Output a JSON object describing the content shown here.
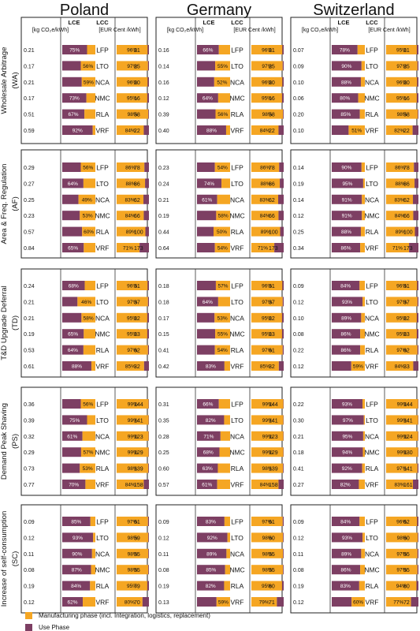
{
  "chart_data": {
    "type": "bar",
    "colors": {
      "manufacturing": "#F5A623",
      "use": "#7D3F63",
      "border": "#222222"
    },
    "countries": [
      "Poland",
      "Germany",
      "Switzerland"
    ],
    "lce_header": "LCE",
    "lce_unit": "[kg CO₂e/kWh]",
    "lcc_header": "LCC",
    "lcc_unit": "[EUR Cent /kWh]",
    "technologies": [
      "LFP",
      "LTO",
      "NCA",
      "NMC",
      "RLA",
      "VRF"
    ],
    "applications": [
      {
        "label": "Wholesale Arbitrage",
        "abbr": "(WA)"
      },
      {
        "label": "Area & Freq. Regulation",
        "abbr": "(AF)"
      },
      {
        "label": "T&D Upgrade Deferral",
        "abbr": "(TD)"
      },
      {
        "label": "Demand Peak Shaving",
        "abbr": "(PS)"
      },
      {
        "label": "Increase of self-consumption",
        "abbr": "(SC)"
      }
    ],
    "lce_values": [
      [
        [
          "0.21",
          "0.17",
          "0.21",
          "0.17",
          "0.51",
          "0.59"
        ],
        [
          "0.16",
          "0.14",
          "0.16",
          "0.12",
          "0.39",
          "0.40"
        ],
        [
          "0.07",
          "0.09",
          "0.10",
          "0.06",
          "0.20",
          "0.10"
        ]
      ],
      [
        [
          "0.29",
          "0.27",
          "0.25",
          "0.23",
          "0.57",
          "0.84"
        ],
        [
          "0.23",
          "0.24",
          "0.21",
          "0.19",
          "0.44",
          "0.64"
        ],
        [
          "0.14",
          "0.19",
          "0.14",
          "0.12",
          "0.25",
          "0.34"
        ]
      ],
      [
        [
          "0.24",
          "0.21",
          "0.21",
          "0.19",
          "0.53",
          "0.61"
        ],
        [
          "0.18",
          "0.18",
          "0.17",
          "0.15",
          "0.41",
          "0.42"
        ],
        [
          "0.09",
          "0.12",
          "0.10",
          "0.08",
          "0.22",
          "0.12"
        ]
      ],
      [
        [
          "0.36",
          "0.39",
          "0.32",
          "0.29",
          "0.73",
          "0.77"
        ],
        [
          "0.31",
          "0.35",
          "0.28",
          "0.25",
          "0.60",
          "0.57"
        ],
        [
          "0.22",
          "0.30",
          "0.21",
          "0.18",
          "0.41",
          "0.27"
        ]
      ],
      [
        [
          "0.09",
          "0.12",
          "0.11",
          "0.08",
          "0.19",
          "0.12"
        ],
        [
          "0.09",
          "0.12",
          "0.11",
          "0.08",
          "0.19",
          "0.13"
        ],
        [
          "0.09",
          "0.12",
          "0.11",
          "0.08",
          "0.19",
          "0.12"
        ]
      ]
    ],
    "lce_use_share": [
      [
        [
          75,
          56,
          59,
          73,
          67,
          92
        ],
        [
          66,
          55,
          52,
          64,
          56,
          88
        ],
        [
          78,
          90,
          88,
          80,
          85,
          51
        ]
      ],
      [
        [
          56,
          64,
          49,
          53,
          60,
          65
        ],
        [
          54,
          74,
          61,
          58,
          50,
          54
        ],
        [
          90,
          95,
          91,
          91,
          88,
          86
        ]
      ],
      [
        [
          68,
          46,
          58,
          65,
          64,
          88
        ],
        [
          57,
          64,
          53,
          55,
          54,
          83
        ],
        [
          84,
          93,
          89,
          86,
          86,
          59
        ]
      ],
      [
        [
          56,
          75,
          61,
          57,
          53,
          70
        ],
        [
          66,
          82,
          71,
          68,
          63,
          61
        ],
        [
          93,
          97,
          95,
          94,
          92,
          82
        ]
      ],
      [
        [
          85,
          93,
          90,
          87,
          84,
          62
        ],
        [
          83,
          92,
          89,
          85,
          82,
          59
        ],
        [
          84,
          93,
          89,
          86,
          83,
          60
        ]
      ]
    ],
    "lcc_values": [
      [
        [
          "21",
          "25",
          "20",
          "16",
          "58",
          "22"
        ],
        [
          "21",
          "25",
          "20",
          "16",
          "58",
          "22"
        ],
        [
          "21",
          "25",
          "20",
          "16",
          "58",
          "22"
        ]
      ],
      [
        [
          "78",
          "86",
          "62",
          "66",
          "100",
          "173"
        ],
        [
          "78",
          "86",
          "62",
          "66",
          "100",
          "173"
        ],
        [
          "78",
          "86",
          "62",
          "66",
          "100",
          "173"
        ]
      ],
      [
        [
          "31",
          "37",
          "22",
          "23",
          "62",
          "32"
        ],
        [
          "31",
          "37",
          "22",
          "23",
          "61",
          "32"
        ],
        [
          "31",
          "37",
          "22",
          "23",
          "62",
          "33"
        ]
      ],
      [
        [
          "144",
          "141",
          "123",
          "129",
          "139",
          "158"
        ],
        [
          "144",
          "141",
          "123",
          "129",
          "139",
          "158"
        ],
        [
          "144",
          "141",
          "124",
          "130",
          "141",
          "161"
        ]
      ],
      [
        [
          "61",
          "59",
          "55",
          "55",
          "79",
          "70"
        ],
        [
          "61",
          "60",
          "55",
          "55",
          "80",
          "71"
        ],
        [
          "62",
          "60",
          "55",
          "55",
          "80",
          "72"
        ]
      ]
    ],
    "lcc_manuf_share": [
      [
        [
          96,
          97,
          96,
          95,
          98,
          84
        ],
        [
          96,
          97,
          96,
          95,
          98,
          84
        ],
        [
          95,
          97,
          96,
          95,
          98,
          82
        ]
      ],
      [
        [
          86,
          88,
          83,
          84,
          89,
          71
        ],
        [
          86,
          88,
          83,
          84,
          89,
          71
        ],
        [
          86,
          88,
          83,
          84,
          89,
          71
        ]
      ],
      [
        [
          96,
          97,
          95,
          95,
          97,
          85
        ],
        [
          96,
          97,
          95,
          95,
          97,
          85
        ],
        [
          96,
          97,
          95,
          95,
          97,
          84
        ]
      ],
      [
        [
          99,
          99,
          99,
          99,
          98,
          84
        ],
        [
          99,
          99,
          99,
          99,
          98,
          84
        ],
        [
          99,
          99,
          99,
          99,
          97,
          83
        ]
      ],
      [
        [
          97,
          98,
          98,
          98,
          95,
          80
        ],
        [
          97,
          98,
          98,
          98,
          95,
          79
        ],
        [
          96,
          98,
          97,
          97,
          94,
          77
        ]
      ]
    ],
    "legend": [
      {
        "key": "manufacturing",
        "label": "Manufacturing phase (incl. Integration, logistics, replacement)"
      },
      {
        "key": "use",
        "label": "Use Phase"
      }
    ]
  }
}
